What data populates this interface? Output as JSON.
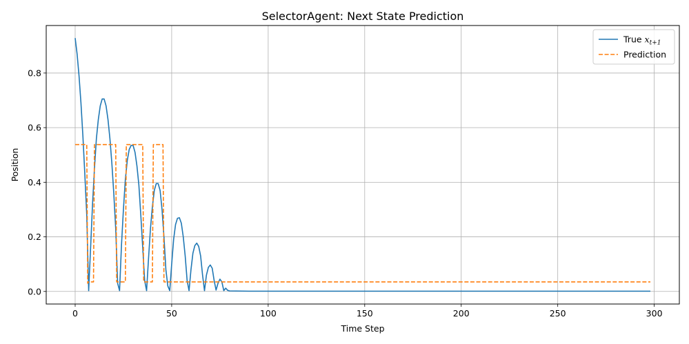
{
  "chart_data": {
    "type": "line",
    "title": "SelectorAgent: Next State Prediction",
    "xlabel": "Time Step",
    "ylabel": "Position",
    "xlim": [
      -15,
      313
    ],
    "ylim": [
      -0.046,
      0.974
    ],
    "xticks": [
      0,
      50,
      100,
      150,
      200,
      250,
      300
    ],
    "yticks": [
      0.0,
      0.2,
      0.4,
      0.6,
      0.8
    ],
    "grid": true,
    "legend_position": "top-right",
    "series": [
      {
        "name": "True x_{t+1}",
        "legend_label": "True ",
        "legend_math": "x",
        "legend_sub": "t+1",
        "color": "#1f77b4",
        "style": "solid",
        "points": [
          [
            0,
            0.928
          ],
          [
            1,
            0.87
          ],
          [
            2,
            0.79
          ],
          [
            3,
            0.69
          ],
          [
            4,
            0.57
          ],
          [
            5,
            0.43
          ],
          [
            6,
            0.28
          ],
          [
            7,
            0.003
          ],
          [
            8,
            0.16
          ],
          [
            9,
            0.32
          ],
          [
            10,
            0.45
          ],
          [
            11,
            0.56
          ],
          [
            12,
            0.63
          ],
          [
            13,
            0.68
          ],
          [
            14,
            0.705
          ],
          [
            15,
            0.705
          ],
          [
            16,
            0.68
          ],
          [
            17,
            0.63
          ],
          [
            18,
            0.56
          ],
          [
            19,
            0.47
          ],
          [
            20,
            0.36
          ],
          [
            21,
            0.23
          ],
          [
            22,
            0.03
          ],
          [
            23,
            0.003
          ],
          [
            24,
            0.17
          ],
          [
            25,
            0.3
          ],
          [
            26,
            0.41
          ],
          [
            27,
            0.48
          ],
          [
            28,
            0.52
          ],
          [
            29,
            0.535
          ],
          [
            30,
            0.535
          ],
          [
            31,
            0.51
          ],
          [
            32,
            0.46
          ],
          [
            33,
            0.39
          ],
          [
            34,
            0.28
          ],
          [
            35,
            0.16
          ],
          [
            36,
            0.04
          ],
          [
            37,
            0.003
          ],
          [
            38,
            0.12
          ],
          [
            39,
            0.23
          ],
          [
            40,
            0.31
          ],
          [
            41,
            0.37
          ],
          [
            42,
            0.395
          ],
          [
            43,
            0.395
          ],
          [
            44,
            0.37
          ],
          [
            45,
            0.3
          ],
          [
            46,
            0.2
          ],
          [
            47,
            0.08
          ],
          [
            48,
            0.02
          ],
          [
            49,
            0.003
          ],
          [
            50,
            0.1
          ],
          [
            51,
            0.19
          ],
          [
            52,
            0.245
          ],
          [
            53,
            0.268
          ],
          [
            54,
            0.27
          ],
          [
            55,
            0.25
          ],
          [
            56,
            0.2
          ],
          [
            57,
            0.13
          ],
          [
            58,
            0.04
          ],
          [
            59,
            0.003
          ],
          [
            60,
            0.08
          ],
          [
            61,
            0.14
          ],
          [
            62,
            0.168
          ],
          [
            63,
            0.177
          ],
          [
            64,
            0.165
          ],
          [
            65,
            0.13
          ],
          [
            66,
            0.06
          ],
          [
            67,
            0.003
          ],
          [
            68,
            0.06
          ],
          [
            69,
            0.088
          ],
          [
            70,
            0.097
          ],
          [
            71,
            0.085
          ],
          [
            72,
            0.04
          ],
          [
            73,
            0.005
          ],
          [
            74,
            0.03
          ],
          [
            75,
            0.045
          ],
          [
            76,
            0.035
          ],
          [
            77,
            0.003
          ],
          [
            78,
            0.012
          ],
          [
            79,
            0.004
          ],
          [
            80,
            0.002
          ],
          [
            90,
            0.001
          ],
          [
            120,
            0.001
          ],
          [
            200,
            0.001
          ],
          [
            298,
            0.001
          ]
        ]
      },
      {
        "name": "Prediction",
        "legend_label": "Prediction",
        "color": "#ff7f0e",
        "style": "dashed",
        "points": [
          [
            0,
            0.538
          ],
          [
            6,
            0.538
          ],
          [
            6.5,
            0.03
          ],
          [
            7,
            0.035
          ],
          [
            9.5,
            0.035
          ],
          [
            10,
            0.538
          ],
          [
            21,
            0.538
          ],
          [
            21.5,
            0.035
          ],
          [
            26,
            0.035
          ],
          [
            26.5,
            0.538
          ],
          [
            35,
            0.538
          ],
          [
            35.5,
            0.035
          ],
          [
            40,
            0.035
          ],
          [
            40.5,
            0.538
          ],
          [
            45.5,
            0.538
          ],
          [
            46,
            0.035
          ],
          [
            298,
            0.035
          ]
        ]
      }
    ]
  }
}
